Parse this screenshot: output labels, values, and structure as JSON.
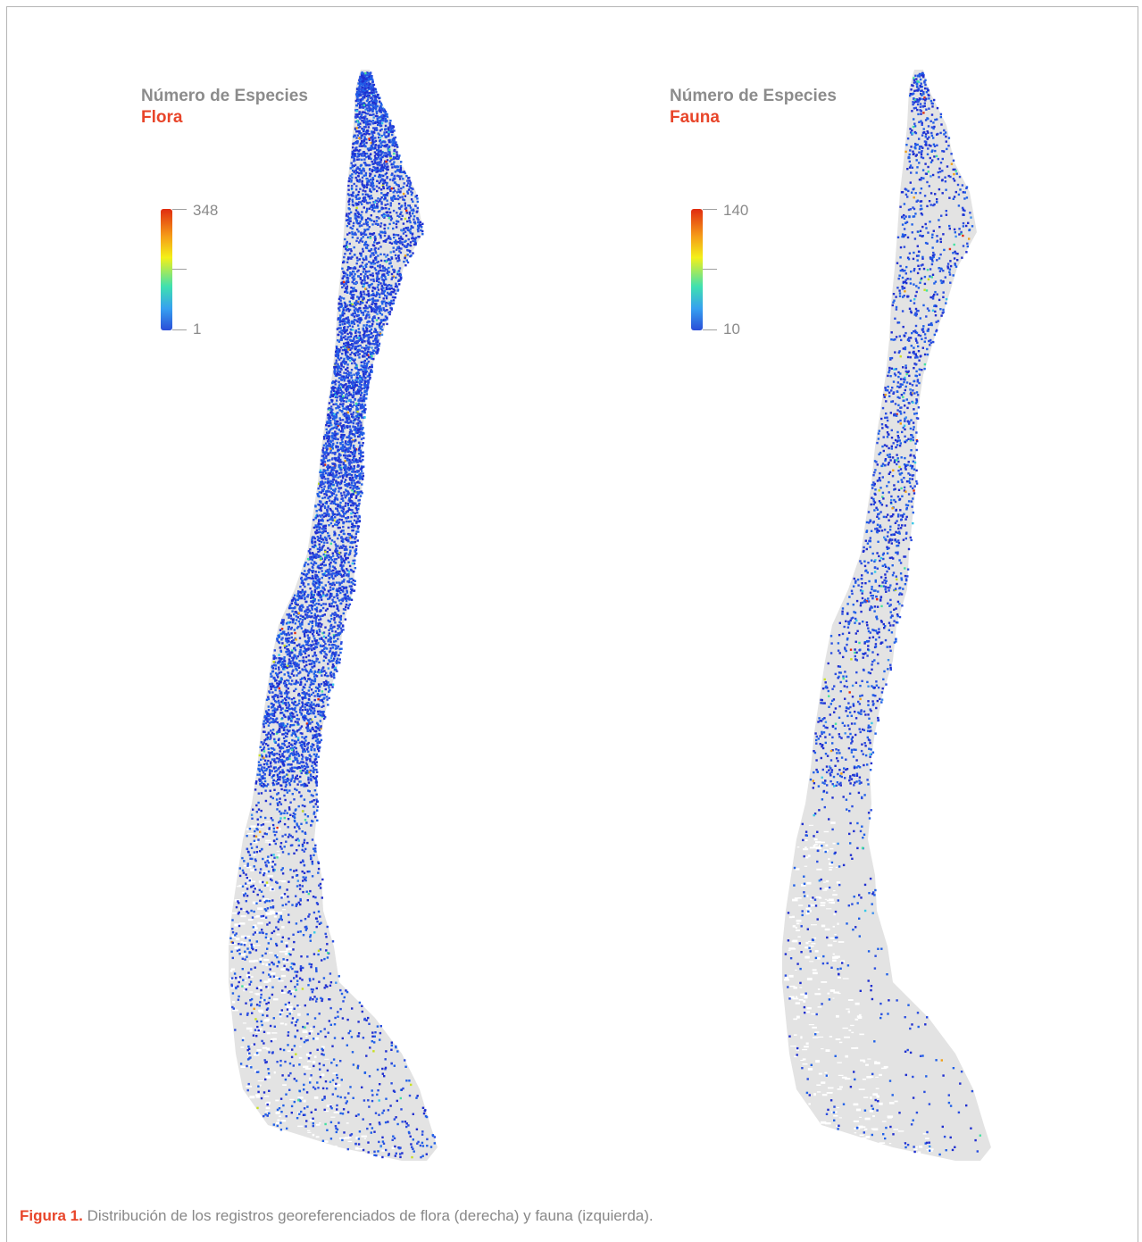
{
  "panels": [
    {
      "title_line1": "Número de Especies",
      "title_line2": "Flora",
      "legend": {
        "max": "348",
        "min": "1"
      }
    },
    {
      "title_line1": "Número de Especies",
      "title_line2": "Fauna",
      "legend": {
        "max": "140",
        "min": "10"
      }
    }
  ],
  "caption": {
    "figure_label": "Figura 1.",
    "text": " Distribución de los registros georeferenciados de flora (derecha) y fauna (izquierda)."
  },
  "colors": {
    "land": "#e3e3e3",
    "accent": "#e8452a",
    "title_gray": "#8c8c8c",
    "scale_low": "#2a3fd0",
    "scale_high": "#e02c10"
  }
}
